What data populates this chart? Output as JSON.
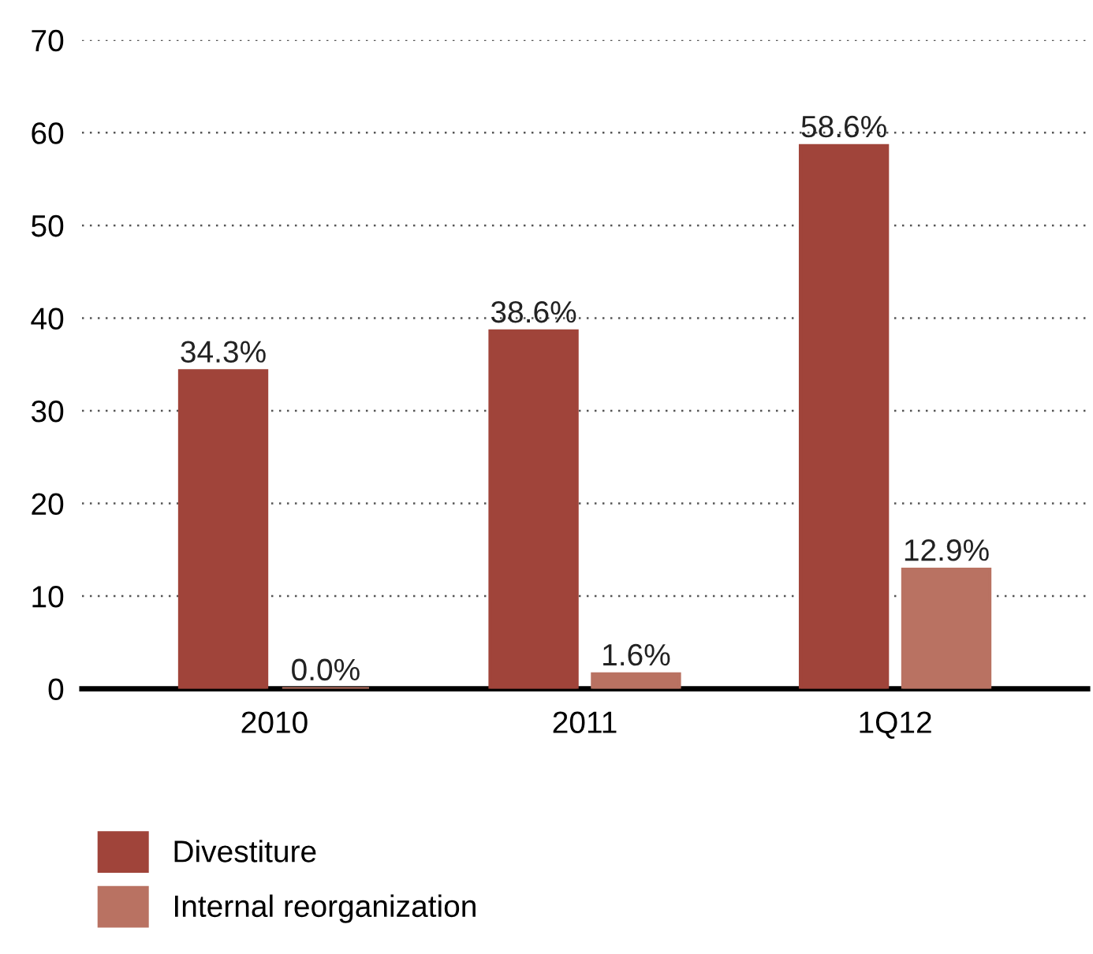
{
  "chart_data": {
    "type": "bar",
    "categories": [
      "2010",
      "2011",
      "1Q12"
    ],
    "series": [
      {
        "name": "Divestiture",
        "color": "#a0443a",
        "values": [
          34.3,
          38.6,
          58.6
        ],
        "value_labels": [
          "34.3%",
          "38.6%",
          "58.6%"
        ]
      },
      {
        "name": "Internal reorganization",
        "color": "#b97262",
        "values": [
          0.0,
          1.6,
          12.9
        ],
        "value_labels": [
          "0.0%",
          "1.6%",
          "12.9%"
        ]
      }
    ],
    "ylim": [
      0,
      70
    ],
    "yticks": [
      0,
      10,
      20,
      30,
      40,
      50,
      60,
      70
    ],
    "grid": "y",
    "legend": "bottom left"
  }
}
